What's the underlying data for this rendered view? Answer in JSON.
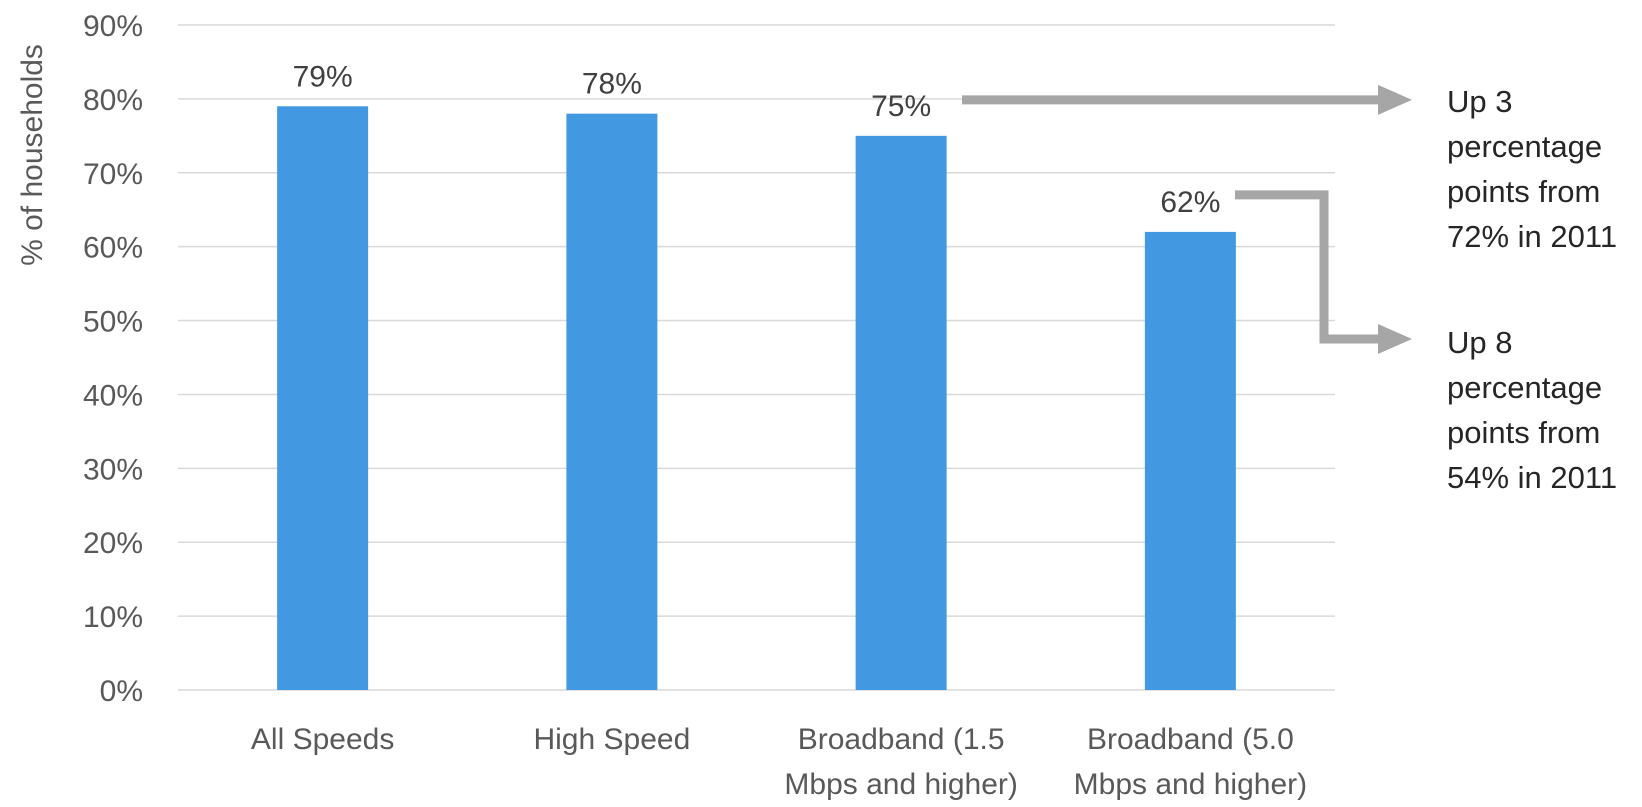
{
  "chart_data": {
    "type": "bar",
    "categories": [
      [
        "All Speeds"
      ],
      [
        "High Speed"
      ],
      [
        "Broadband (1.5",
        "Mbps and higher)"
      ],
      [
        "Broadband (5.0",
        "Mbps and higher)"
      ]
    ],
    "values": [
      79,
      78,
      75,
      62
    ],
    "data_labels": [
      "79%",
      "78%",
      "75%",
      "62%"
    ],
    "ylabel": "% of households",
    "ylim": [
      0,
      90
    ],
    "y_ticks": [
      "0%",
      "10%",
      "20%",
      "30%",
      "40%",
      "50%",
      "60%",
      "70%",
      "80%",
      "90%"
    ],
    "grid": true,
    "bar_color": "#4299e1",
    "annotations": [
      {
        "category_index": 2,
        "lines": [
          "Up 3",
          "percentage",
          "points from",
          "72% in 2011"
        ]
      },
      {
        "category_index": 3,
        "lines": [
          "Up 8",
          "percentage",
          "points from",
          "54% in 2011"
        ]
      }
    ],
    "arrow_color": "#a6a6a6"
  }
}
